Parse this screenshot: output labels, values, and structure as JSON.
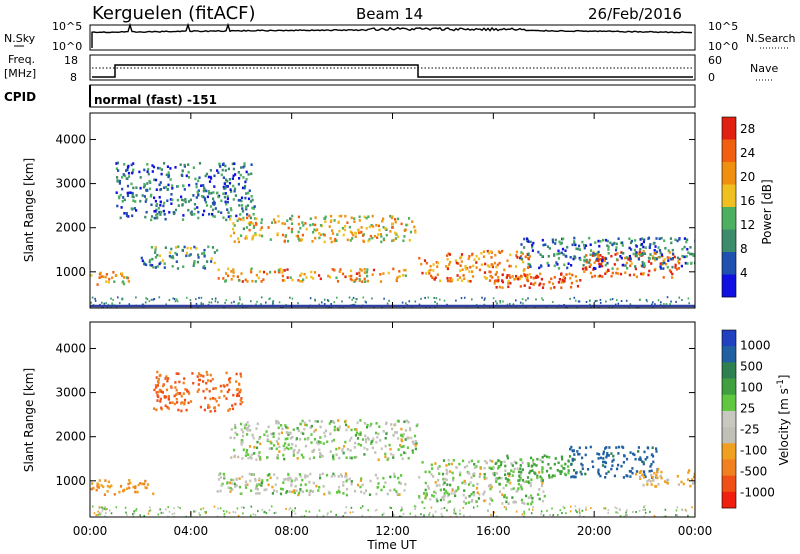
{
  "header": {
    "station": "Kerguelen (fitACF)",
    "beam": "Beam 14",
    "date": "26/Feb/2016"
  },
  "status_panels": {
    "nsky_label": "N.Sky",
    "nsearch_label": "N.Search",
    "log_ticks_left": [
      "10^5",
      "10^0"
    ],
    "log_ticks_right": [
      "10^5",
      "10^0"
    ],
    "freq_label": "Freq.",
    "freq_unit": "[MHz]",
    "freq_ticks": [
      "18",
      "8"
    ],
    "nave_label": "Nave",
    "nave_ticks": [
      "60",
      "0"
    ],
    "cpid_label": "CPID",
    "cpid_text": "normal (fast) -151"
  },
  "time_axis": {
    "label": "Time UT",
    "ticks": [
      "00:00",
      "04:00",
      "08:00",
      "12:00",
      "16:00",
      "20:00",
      "00:00"
    ]
  },
  "colors": {
    "power_scale": [
      "#1010e0",
      "#2050b0",
      "#3c8c6c",
      "#4cb060",
      "#f0c020",
      "#f09010",
      "#f06010",
      "#e02010"
    ],
    "velocity_scale": [
      "#f02010",
      "#f05018",
      "#f08020",
      "#f0a020",
      "#c0c0b8",
      "#c8c8c0",
      "#60c840",
      "#40a040",
      "#2e8050",
      "#2060a0",
      "#2040c0"
    ]
  },
  "chart_data": [
    {
      "type": "heatmap",
      "title": "",
      "xlabel": "Time UT",
      "ylabel": "Slant Range [km]",
      "x_ticks": [
        "00:00",
        "04:00",
        "08:00",
        "12:00",
        "16:00",
        "20:00",
        "00:00"
      ],
      "y_ticks": [
        "1000",
        "2000",
        "3000",
        "4000"
      ],
      "xlim_hours": [
        0,
        24
      ],
      "ylim_km": [
        180,
        4600
      ],
      "colorbar": {
        "label": "Power [dB]",
        "ticks": [
          "4",
          "8",
          "12",
          "16",
          "20",
          "24",
          "28"
        ],
        "range": [
          0,
          30
        ]
      },
      "scatter_regions": [
        {
          "t": [
            0.0,
            1.5
          ],
          "range_km": [
            700,
            1050
          ],
          "value_db": 20
        },
        {
          "t": [
            1.0,
            6.5
          ],
          "range_km": [
            2200,
            3500
          ],
          "value_db": 8
        },
        {
          "t": [
            2.0,
            5.0
          ],
          "range_km": [
            1100,
            1600
          ],
          "value_db": 10
        },
        {
          "t": [
            5.5,
            12.9
          ],
          "range_km": [
            1700,
            2300
          ],
          "value_db": 18
        },
        {
          "t": [
            5.0,
            12.5
          ],
          "range_km": [
            800,
            1100
          ],
          "value_db": 20
        },
        {
          "t": [
            13.0,
            17.5
          ],
          "range_km": [
            800,
            1500
          ],
          "value_db": 22
        },
        {
          "t": [
            16.0,
            19.5
          ],
          "range_km": [
            650,
            1000
          ],
          "value_db": 26
        },
        {
          "t": [
            19.5,
            23.5
          ],
          "range_km": [
            900,
            1500
          ],
          "value_db": 24
        },
        {
          "t": [
            17.0,
            24.0
          ],
          "range_km": [
            1100,
            1800
          ],
          "value_db": 8
        }
      ]
    },
    {
      "type": "heatmap",
      "title": "",
      "xlabel": "Time UT",
      "ylabel": "Slant Range [km]",
      "x_ticks": [
        "00:00",
        "04:00",
        "08:00",
        "12:00",
        "16:00",
        "20:00",
        "00:00"
      ],
      "y_ticks": [
        "1000",
        "2000",
        "3000",
        "4000"
      ],
      "xlim_hours": [
        0,
        24
      ],
      "ylim_km": [
        180,
        4600
      ],
      "colorbar": {
        "label": "Velocity [m s^-1]",
        "ticks": [
          "1000",
          "500",
          "100",
          "25",
          "-25",
          "-100",
          "-500",
          "-1000"
        ]
      },
      "scatter_regions": [
        {
          "t": [
            0.0,
            2.5
          ],
          "range_km": [
            700,
            1050
          ],
          "value_ms": -300
        },
        {
          "t": [
            2.5,
            6.0
          ],
          "range_km": [
            2600,
            3500
          ],
          "value_ms": -500
        },
        {
          "t": [
            5.5,
            13.0
          ],
          "range_km": [
            1500,
            2400
          ],
          "value_ms": 0
        },
        {
          "t": [
            5.0,
            12.5
          ],
          "range_km": [
            700,
            1200
          ],
          "value_ms": 0
        },
        {
          "t": [
            13.0,
            18.0
          ],
          "range_km": [
            500,
            1500
          ],
          "value_ms": 0
        },
        {
          "t": [
            16.0,
            19.0
          ],
          "range_km": [
            1000,
            1600
          ],
          "value_ms": 150
        },
        {
          "t": [
            19.0,
            22.5
          ],
          "range_km": [
            1100,
            1800
          ],
          "value_ms": 600
        },
        {
          "t": [
            21.5,
            24.0
          ],
          "range_km": [
            900,
            1300
          ],
          "value_ms": -150
        }
      ]
    }
  ]
}
